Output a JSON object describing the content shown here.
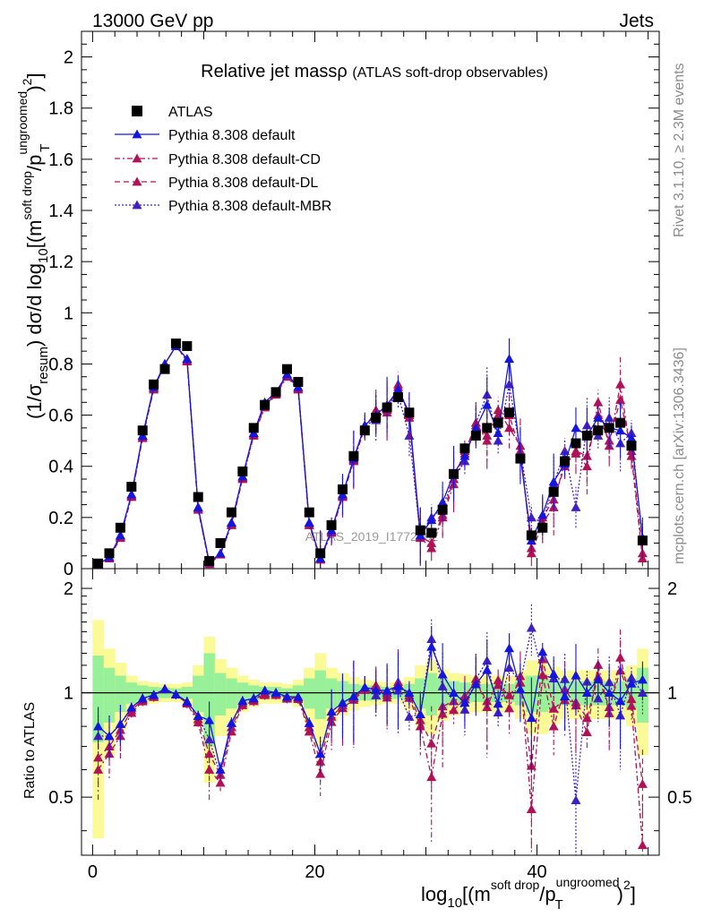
{
  "header": {
    "left": "13000 GeV pp",
    "right": "Jets"
  },
  "side_texts": {
    "rivet": "Rivet 3.1.10, ≥ 2.3M events",
    "mcplots": "mcplots.cern.ch [arXiv:1306.3436]"
  },
  "watermark": "ATLAS_2019_I1772062",
  "colors": {
    "mc_default": "#1515e0",
    "mc_cd": "#b01258",
    "mc_dl": "#b01258",
    "mc_mbr": "#4020c0",
    "band_inner": "#98f098",
    "band_outer": "#fafa96"
  },
  "chart_data": [
    {
      "type": "scatter",
      "title": "Relative jet massρ (ATLAS soft-drop observables)",
      "ylabel_main": "(1/σ",
      "ylabel_sub": "resum",
      "ylabel_mid": ") dσ/d log",
      "ylabel_sub2": "10",
      "ylabel_tail": "[(m",
      "ylabel_sup": "soft drop",
      "ylabel_tail2": "/p",
      "ylabel_sup2": "ungroomed",
      "ylabel_sub3": "T",
      "ylabel_end": ")",
      "ylabel_sup3": "2",
      "ylabel_close": "]",
      "xlim": [
        -1,
        51
      ],
      "ylim": [
        0,
        2.1
      ],
      "yticks": [
        "0",
        "0.2",
        "0.4",
        "0.6",
        "0.8",
        "1",
        "1.2",
        "1.4",
        "1.6",
        "1.8",
        "2"
      ],
      "legend_position": "top-left",
      "x": [
        0.5,
        1.5,
        2.5,
        3.5,
        4.5,
        5.5,
        6.5,
        7.5,
        8.5,
        9.5,
        10.5,
        11.5,
        12.5,
        13.5,
        14.5,
        15.5,
        16.5,
        17.5,
        18.5,
        19.5,
        20.5,
        21.5,
        22.5,
        23.5,
        24.5,
        25.5,
        26.5,
        27.5,
        28.5,
        29.5,
        30.5,
        31.5,
        32.5,
        33.5,
        34.5,
        35.5,
        36.5,
        37.5,
        38.5,
        39.5,
        40.5,
        41.5,
        42.5,
        43.5,
        44.5,
        45.5,
        46.5,
        47.5,
        48.5,
        49.5
      ],
      "series": [
        {
          "name": "ATLAS",
          "marker": "square",
          "values": [
            0.02,
            0.06,
            0.16,
            0.32,
            0.54,
            0.72,
            0.78,
            0.88,
            0.87,
            0.28,
            0.03,
            0.1,
            0.22,
            0.38,
            0.55,
            0.64,
            0.69,
            0.78,
            0.73,
            0.22,
            0.06,
            0.17,
            0.31,
            0.44,
            0.54,
            0.59,
            0.63,
            0.67,
            0.61,
            0.15,
            0.14,
            0.23,
            0.37,
            0.47,
            0.52,
            0.55,
            0.57,
            0.61,
            0.43,
            0.13,
            0.16,
            0.3,
            0.42,
            0.49,
            0.52,
            0.54,
            0.55,
            0.57,
            0.48,
            0.11
          ]
        },
        {
          "name": "Pythia 8.308 default",
          "marker": "triangle",
          "line": "solid",
          "values": [
            0.016,
            0.045,
            0.13,
            0.29,
            0.52,
            0.71,
            0.8,
            0.87,
            0.82,
            0.24,
            0.025,
            0.06,
            0.18,
            0.36,
            0.53,
            0.65,
            0.69,
            0.76,
            0.71,
            0.18,
            0.04,
            0.15,
            0.29,
            0.43,
            0.56,
            0.6,
            0.64,
            0.7,
            0.61,
            0.13,
            0.19,
            0.26,
            0.37,
            0.44,
            0.55,
            0.64,
            0.53,
            0.82,
            0.44,
            0.11,
            0.21,
            0.34,
            0.41,
            0.55,
            0.52,
            0.59,
            0.55,
            0.54,
            0.51,
            0.12
          ]
        },
        {
          "name": "Pythia 8.308 default-CD",
          "marker": "triangle",
          "line": "dashdot",
          "values": [
            0.012,
            0.04,
            0.12,
            0.28,
            0.51,
            0.7,
            0.8,
            0.87,
            0.81,
            0.23,
            0.018,
            0.055,
            0.17,
            0.35,
            0.52,
            0.63,
            0.68,
            0.75,
            0.7,
            0.17,
            0.035,
            0.14,
            0.28,
            0.42,
            0.55,
            0.62,
            0.61,
            0.72,
            0.59,
            0.12,
            0.08,
            0.2,
            0.33,
            0.45,
            0.57,
            0.5,
            0.62,
            0.55,
            0.48,
            0.06,
            0.18,
            0.24,
            0.43,
            0.45,
            0.4,
            0.65,
            0.48,
            0.72,
            0.44,
            0.04
          ]
        },
        {
          "name": "Pythia 8.308 default-DL",
          "marker": "triangle",
          "line": "dashed",
          "values": [
            0.013,
            0.042,
            0.125,
            0.285,
            0.515,
            0.705,
            0.8,
            0.87,
            0.815,
            0.235,
            0.02,
            0.058,
            0.175,
            0.355,
            0.525,
            0.635,
            0.685,
            0.755,
            0.705,
            0.175,
            0.038,
            0.145,
            0.285,
            0.425,
            0.555,
            0.61,
            0.62,
            0.71,
            0.6,
            0.125,
            0.1,
            0.21,
            0.35,
            0.46,
            0.56,
            0.52,
            0.6,
            0.6,
            0.46,
            0.08,
            0.2,
            0.27,
            0.4,
            0.46,
            0.44,
            0.6,
            0.5,
            0.66,
            0.46,
            0.06
          ]
        },
        {
          "name": "Pythia 8.308 default-MBR",
          "marker": "triangle",
          "line": "dotted",
          "values": [
            0.015,
            0.045,
            0.13,
            0.29,
            0.52,
            0.71,
            0.8,
            0.87,
            0.82,
            0.24,
            0.022,
            0.058,
            0.18,
            0.36,
            0.53,
            0.64,
            0.69,
            0.76,
            0.71,
            0.18,
            0.04,
            0.15,
            0.29,
            0.43,
            0.56,
            0.58,
            0.63,
            0.68,
            0.52,
            0.13,
            0.2,
            0.24,
            0.35,
            0.42,
            0.57,
            0.68,
            0.5,
            0.72,
            0.46,
            0.2,
            0.18,
            0.33,
            0.46,
            0.24,
            0.56,
            0.52,
            0.59,
            0.49,
            0.53,
            0.11
          ]
        }
      ]
    },
    {
      "type": "scatter",
      "ylabel": "Ratio to ATLAS",
      "xlabel_main": "log",
      "xlabel_sub": "10",
      "xlabel_tail": "[(m",
      "xlabel_sup": "soft drop",
      "xlabel_tail2": "/p",
      "xlabel_sup2": "ungroomed",
      "xlabel_sub2": "T",
      "xlabel_end": ")",
      "xlabel_sup3": "2",
      "xlabel_close": "]",
      "xlim": [
        -1,
        51
      ],
      "ylim": [
        0.34,
        2.28
      ],
      "yscale": "log",
      "yticks": [
        "0.5",
        "1",
        "2"
      ],
      "xticks": [
        "0",
        "20",
        "40"
      ],
      "band_inner_half_width": [
        0.28,
        0.18,
        0.12,
        0.07,
        0.05,
        0.04,
        0.035,
        0.03,
        0.04,
        0.12,
        0.3,
        0.14,
        0.1,
        0.07,
        0.05,
        0.04,
        0.04,
        0.03,
        0.05,
        0.1,
        0.16,
        0.1,
        0.08,
        0.06,
        0.05,
        0.05,
        0.04,
        0.04,
        0.06,
        0.1,
        0.14,
        0.1,
        0.08,
        0.07,
        0.06,
        0.06,
        0.06,
        0.06,
        0.08,
        0.12,
        0.12,
        0.1,
        0.08,
        0.08,
        0.08,
        0.08,
        0.08,
        0.08,
        0.1,
        0.18
      ],
      "band_outer_half_width": [
        0.62,
        0.34,
        0.22,
        0.12,
        0.08,
        0.07,
        0.06,
        0.06,
        0.07,
        0.2,
        0.45,
        0.25,
        0.18,
        0.12,
        0.09,
        0.07,
        0.07,
        0.06,
        0.09,
        0.18,
        0.3,
        0.18,
        0.14,
        0.11,
        0.09,
        0.08,
        0.07,
        0.07,
        0.11,
        0.2,
        0.24,
        0.17,
        0.14,
        0.13,
        0.12,
        0.12,
        0.12,
        0.12,
        0.16,
        0.24,
        0.24,
        0.19,
        0.16,
        0.16,
        0.16,
        0.16,
        0.16,
        0.16,
        0.2,
        0.34
      ]
    }
  ]
}
